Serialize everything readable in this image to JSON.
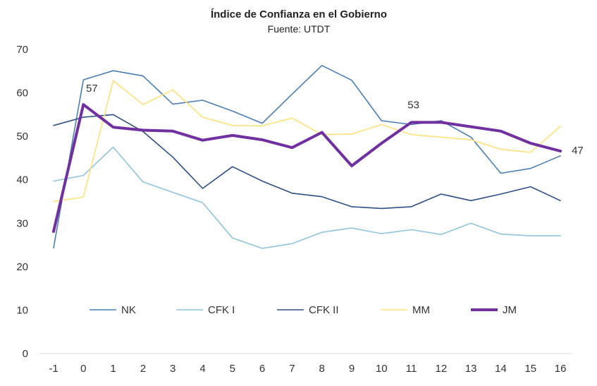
{
  "chart_data": {
    "type": "line",
    "title": "Índice de Confianza en el Gobierno",
    "subtitle": "Fuente: UTDT",
    "x": [
      -1,
      0,
      1,
      2,
      3,
      4,
      5,
      6,
      7,
      8,
      9,
      10,
      11,
      12,
      13,
      14,
      15,
      16
    ],
    "x_tick_labels": [
      "-1",
      "0",
      "1",
      "2",
      "3",
      "4",
      "5",
      "6",
      "7",
      "8",
      "9",
      "10",
      "11",
      "12",
      "13",
      "14",
      "15",
      "16"
    ],
    "ylim": [
      0,
      70
    ],
    "y_ticks": [
      0,
      10,
      20,
      30,
      40,
      50,
      60,
      70
    ],
    "y_tick_labels": [
      "0",
      "10",
      "20",
      "30",
      "40",
      "50",
      "60",
      "70"
    ],
    "grid": false,
    "legend_placement": "bottom-inside",
    "series": [
      {
        "name": "NK",
        "color": "#4a7fb5",
        "width": 1.6,
        "values": [
          24.3,
          63,
          65.1,
          63.9,
          57.4,
          58.3,
          55.8,
          53,
          59.7,
          66.3,
          62.9,
          53.6,
          52.7,
          53.6,
          49.8,
          41.5,
          42.6,
          45.5
        ]
      },
      {
        "name": "CFK I",
        "color": "#91c4dd",
        "width": 1.6,
        "values": [
          39.7,
          41,
          47.5,
          39.5,
          37.1,
          34.7,
          26.6,
          24.2,
          25.3,
          27.9,
          28.9,
          27.6,
          28.5,
          27.4,
          30,
          27.5,
          27.1,
          27.1
        ]
      },
      {
        "name": "CFK II",
        "color": "#2e4e86",
        "width": 1.6,
        "values": [
          52.5,
          54.4,
          55,
          51.1,
          45.2,
          38,
          43,
          39.7,
          36.9,
          36.1,
          33.8,
          33.4,
          33.8,
          36.7,
          35.2,
          36.7,
          38.4,
          35.2
        ]
      },
      {
        "name": "MM",
        "color": "#fde27a",
        "width": 1.6,
        "values": [
          35,
          36,
          62.8,
          57.3,
          60.7,
          54.4,
          52.5,
          52.4,
          54.2,
          50.4,
          50.5,
          52.7,
          50.4,
          49.8,
          49.2,
          47,
          46.3,
          52.3
        ]
      },
      {
        "name": "JM",
        "color": "#7030a0",
        "width": 4,
        "values": [
          28.1,
          57.3,
          52.1,
          51.4,
          51.2,
          49.1,
          50.2,
          49.2,
          47.4,
          50.9,
          43.2,
          48.4,
          53.2,
          53.2,
          52.2,
          51.2,
          48.4,
          46.6
        ]
      }
    ],
    "annotations": [
      {
        "series": "JM",
        "x": 0,
        "text": "57"
      },
      {
        "series": "JM",
        "x": 11,
        "text": "53"
      },
      {
        "series": "JM",
        "x": 16,
        "text": "47"
      }
    ]
  }
}
